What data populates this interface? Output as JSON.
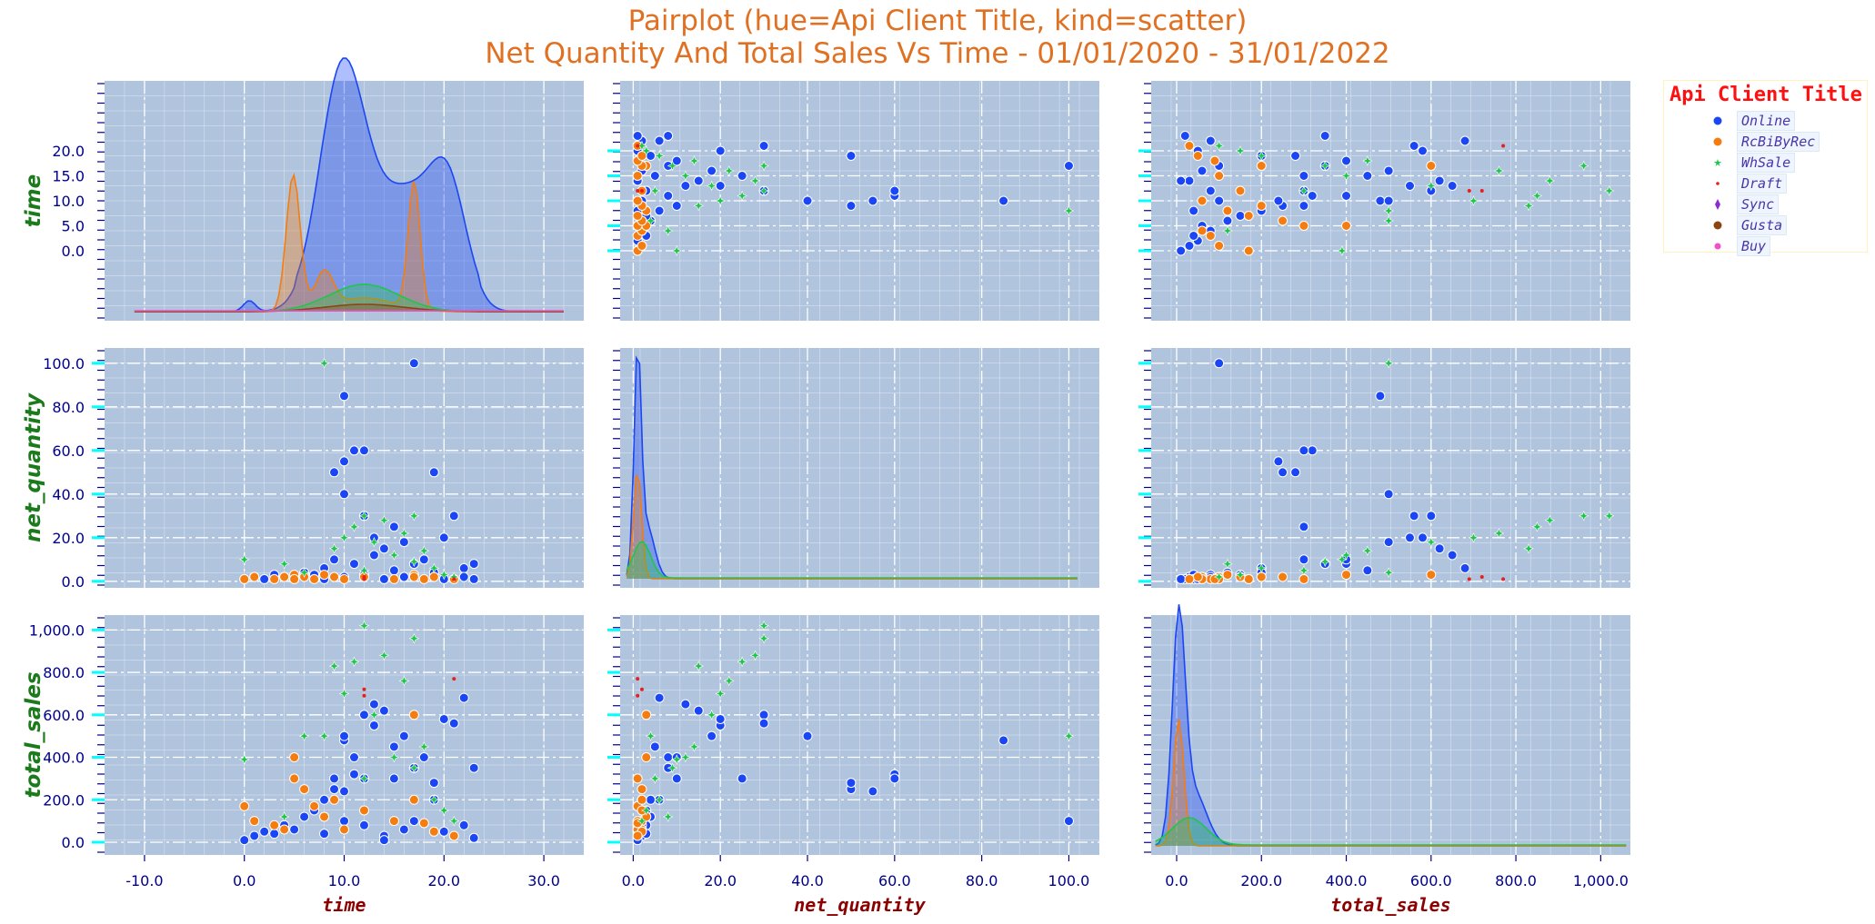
{
  "title": "Pairplot (hue=Api Client Title, kind=scatter)",
  "subtitle": "Net Quantity And Total Sales Vs Time - 01/01/2020 - 31/01/2022",
  "legend": {
    "title": "Api Client Title",
    "items": [
      {
        "name": "Online",
        "color": "#1a46f5",
        "marker": "circle"
      },
      {
        "name": "RcBiByRec",
        "color": "#f57c0e",
        "marker": "circle"
      },
      {
        "name": "WhSale",
        "color": "#1fc64a",
        "marker": "star"
      },
      {
        "name": "Draft",
        "color": "#e8201c",
        "marker": "dot"
      },
      {
        "name": "Sync",
        "color": "#8a2bd6",
        "marker": "diamond"
      },
      {
        "name": "Gusta",
        "color": "#8b4513",
        "marker": "circle"
      },
      {
        "name": "Buy",
        "color": "#f050c8",
        "marker": "circle"
      }
    ]
  },
  "colors": {
    "panel_bg": "#b0c4de",
    "axis_label": "#1b7a1b",
    "xlabel": "#8b0000",
    "tick_label": "#00008b",
    "tick_major": "#00ffff",
    "tick_minor": "#00008b",
    "title": "#e07022"
  },
  "chart_data": {
    "type": "scatter",
    "variables": [
      "time",
      "net_quantity",
      "total_sales"
    ],
    "diagonal": "kde",
    "ranges": {
      "time": [
        -14,
        34
      ],
      "net_quantity": [
        -3,
        107
      ],
      "total_sales": [
        -60,
        1070
      ]
    },
    "ticks": {
      "time": [
        -10,
        0,
        10,
        20,
        30
      ],
      "time_y": [
        0,
        5,
        10,
        15,
        20
      ],
      "net_quantity": [
        0,
        20,
        40,
        60,
        80,
        100
      ],
      "total_sales": [
        0,
        200,
        400,
        600,
        800,
        1000
      ]
    },
    "tick_labels": {
      "time_x": [
        "-10.0",
        "0.0",
        "10.0",
        "20.0",
        "30.0"
      ],
      "time_y": [
        "0.0",
        "5.0",
        "10.0",
        "15.0",
        "20.0"
      ],
      "net_quantity": [
        "0.0",
        "20.0",
        "40.0",
        "60.0",
        "80.0",
        "100.0"
      ],
      "total_sales": [
        "0.0",
        "200.0",
        "400.0",
        "600.0",
        "800.0",
        "1,000.0"
      ]
    },
    "grid": true,
    "legend_position": "right",
    "series": [
      {
        "name": "Online",
        "color": "#1a46f5",
        "points": [
          {
            "time": 0,
            "net_quantity": 1,
            "total_sales": 10
          },
          {
            "time": 1,
            "net_quantity": 2,
            "total_sales": 30
          },
          {
            "time": 2,
            "net_quantity": 1,
            "total_sales": 50
          },
          {
            "time": 3,
            "net_quantity": 3,
            "total_sales": 40
          },
          {
            "time": 4,
            "net_quantity": 2,
            "total_sales": 80
          },
          {
            "time": 5,
            "net_quantity": 1,
            "total_sales": 60
          },
          {
            "time": 6,
            "net_quantity": 4,
            "total_sales": 120
          },
          {
            "time": 7,
            "net_quantity": 3,
            "total_sales": 150
          },
          {
            "time": 8,
            "net_quantity": 6,
            "total_sales": 200
          },
          {
            "time": 8,
            "net_quantity": 1,
            "total_sales": 40
          },
          {
            "time": 9,
            "net_quantity": 10,
            "total_sales": 300
          },
          {
            "time": 9,
            "net_quantity": 50,
            "total_sales": 250
          },
          {
            "time": 10,
            "net_quantity": 85,
            "total_sales": 480
          },
          {
            "time": 10,
            "net_quantity": 40,
            "total_sales": 500
          },
          {
            "time": 10,
            "net_quantity": 2,
            "total_sales": 100
          },
          {
            "time": 11,
            "net_quantity": 60,
            "total_sales": 320
          },
          {
            "time": 11,
            "net_quantity": 8,
            "total_sales": 400
          },
          {
            "time": 12,
            "net_quantity": 30,
            "total_sales": 600
          },
          {
            "time": 12,
            "net_quantity": 3,
            "total_sales": 80
          },
          {
            "time": 13,
            "net_quantity": 20,
            "total_sales": 550
          },
          {
            "time": 13,
            "net_quantity": 12,
            "total_sales": 650
          },
          {
            "time": 14,
            "net_quantity": 15,
            "total_sales": 620
          },
          {
            "time": 14,
            "net_quantity": 1,
            "total_sales": 30
          },
          {
            "time": 15,
            "net_quantity": 25,
            "total_sales": 300
          },
          {
            "time": 15,
            "net_quantity": 5,
            "total_sales": 450
          },
          {
            "time": 16,
            "net_quantity": 18,
            "total_sales": 500
          },
          {
            "time": 16,
            "net_quantity": 2,
            "total_sales": 60
          },
          {
            "time": 17,
            "net_quantity": 100,
            "total_sales": 100
          },
          {
            "time": 17,
            "net_quantity": 8,
            "total_sales": 350
          },
          {
            "time": 18,
            "net_quantity": 10,
            "total_sales": 400
          },
          {
            "time": 19,
            "net_quantity": 50,
            "total_sales": 280
          },
          {
            "time": 19,
            "net_quantity": 4,
            "total_sales": 200
          },
          {
            "time": 20,
            "net_quantity": 20,
            "total_sales": 580
          },
          {
            "time": 20,
            "net_quantity": 1,
            "total_sales": 50
          },
          {
            "time": 21,
            "net_quantity": 30,
            "total_sales": 560
          },
          {
            "time": 22,
            "net_quantity": 6,
            "total_sales": 680
          },
          {
            "time": 22,
            "net_quantity": 2,
            "total_sales": 80
          },
          {
            "time": 23,
            "net_quantity": 8,
            "total_sales": 350
          },
          {
            "time": 23,
            "net_quantity": 1,
            "total_sales": 20
          },
          {
            "time": 12,
            "net_quantity": 60,
            "total_sales": 300
          },
          {
            "time": 10,
            "net_quantity": 55,
            "total_sales": 240
          },
          {
            "time": 14,
            "net_quantity": 1,
            "total_sales": 10
          }
        ]
      },
      {
        "name": "RcBiByRec",
        "color": "#f57c0e",
        "points": [
          {
            "time": 0,
            "net_quantity": 1,
            "total_sales": 170
          },
          {
            "time": 1,
            "net_quantity": 2,
            "total_sales": 100
          },
          {
            "time": 3,
            "net_quantity": 1,
            "total_sales": 80
          },
          {
            "time": 4,
            "net_quantity": 2,
            "total_sales": 60
          },
          {
            "time": 5,
            "net_quantity": 3,
            "total_sales": 400
          },
          {
            "time": 5,
            "net_quantity": 1,
            "total_sales": 300
          },
          {
            "time": 6,
            "net_quantity": 2,
            "total_sales": 250
          },
          {
            "time": 7,
            "net_quantity": 1,
            "total_sales": 170
          },
          {
            "time": 8,
            "net_quantity": 3,
            "total_sales": 120
          },
          {
            "time": 9,
            "net_quantity": 2,
            "total_sales": 200
          },
          {
            "time": 10,
            "net_quantity": 1,
            "total_sales": 60
          },
          {
            "time": 12,
            "net_quantity": 2,
            "total_sales": 150
          },
          {
            "time": 15,
            "net_quantity": 1,
            "total_sales": 100
          },
          {
            "time": 17,
            "net_quantity": 3,
            "total_sales": 600
          },
          {
            "time": 17,
            "net_quantity": 2,
            "total_sales": 200
          },
          {
            "time": 18,
            "net_quantity": 1,
            "total_sales": 90
          },
          {
            "time": 19,
            "net_quantity": 2,
            "total_sales": 50
          },
          {
            "time": 21,
            "net_quantity": 1,
            "total_sales": 30
          }
        ]
      },
      {
        "name": "WhSale",
        "color": "#1fc64a",
        "points": [
          {
            "time": 0,
            "net_quantity": 10,
            "total_sales": 390
          },
          {
            "time": 4,
            "net_quantity": 8,
            "total_sales": 120
          },
          {
            "time": 6,
            "net_quantity": 4,
            "total_sales": 500
          },
          {
            "time": 8,
            "net_quantity": 100,
            "total_sales": 500
          },
          {
            "time": 9,
            "net_quantity": 15,
            "total_sales": 830
          },
          {
            "time": 10,
            "net_quantity": 20,
            "total_sales": 700
          },
          {
            "time": 11,
            "net_quantity": 25,
            "total_sales": 850
          },
          {
            "time": 12,
            "net_quantity": 30,
            "total_sales": 1020
          },
          {
            "time": 12,
            "net_quantity": 5,
            "total_sales": 300
          },
          {
            "time": 13,
            "net_quantity": 18,
            "total_sales": 600
          },
          {
            "time": 14,
            "net_quantity": 28,
            "total_sales": 880
          },
          {
            "time": 15,
            "net_quantity": 12,
            "total_sales": 400
          },
          {
            "time": 16,
            "net_quantity": 22,
            "total_sales": 760
          },
          {
            "time": 17,
            "net_quantity": 9,
            "total_sales": 350
          },
          {
            "time": 18,
            "net_quantity": 14,
            "total_sales": 450
          },
          {
            "time": 19,
            "net_quantity": 6,
            "total_sales": 200
          },
          {
            "time": 20,
            "net_quantity": 3,
            "total_sales": 150
          },
          {
            "time": 21,
            "net_quantity": 2,
            "total_sales": 100
          },
          {
            "time": 17,
            "net_quantity": 30,
            "total_sales": 960
          }
        ]
      },
      {
        "name": "Draft",
        "color": "#e8201c",
        "points": [
          {
            "time": 21,
            "net_quantity": 1,
            "total_sales": 770
          },
          {
            "time": 12,
            "net_quantity": 2,
            "total_sales": 720
          },
          {
            "time": 12,
            "net_quantity": 1,
            "total_sales": 690
          }
        ]
      }
    ]
  }
}
